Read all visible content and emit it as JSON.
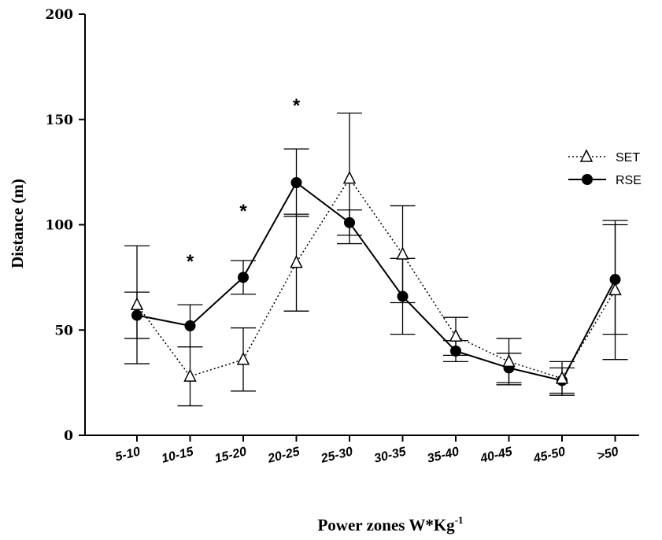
{
  "chart_data": {
    "type": "line",
    "title": "",
    "xlabel": "Power zones W*Kg",
    "xlabel_superscript": "-1",
    "ylabel": "Distance (m)",
    "ylim": [
      0,
      200
    ],
    "yticks": [
      0,
      50,
      100,
      150,
      200
    ],
    "categories": [
      "5-10",
      "10-15",
      "15-20",
      "20-25",
      "25-30",
      "30-35",
      "35-40",
      "40-45",
      "45-50",
      ">50"
    ],
    "series": [
      {
        "name": "SET",
        "marker": "open-triangle",
        "line_style": "dotted",
        "values": [
          62,
          28,
          36,
          82,
          122,
          86,
          47,
          35,
          27,
          69
        ],
        "error": [
          28,
          14,
          15,
          23,
          31,
          23,
          9,
          11,
          8,
          33
        ]
      },
      {
        "name": "RSE",
        "marker": "filled-circle",
        "line_style": "solid",
        "values": [
          57,
          52,
          75,
          120,
          101,
          66,
          40,
          32,
          26,
          74
        ],
        "error": [
          11,
          10,
          8,
          16,
          6,
          18,
          5,
          7,
          6,
          26
        ]
      }
    ],
    "annotations": [
      {
        "text": "*",
        "category": "10-15",
        "y": 83
      },
      {
        "text": "*",
        "category": "15-20",
        "y": 107
      },
      {
        "text": "*",
        "category": "20-25",
        "y": 157
      }
    ],
    "legend_position": "right",
    "grid": false
  }
}
